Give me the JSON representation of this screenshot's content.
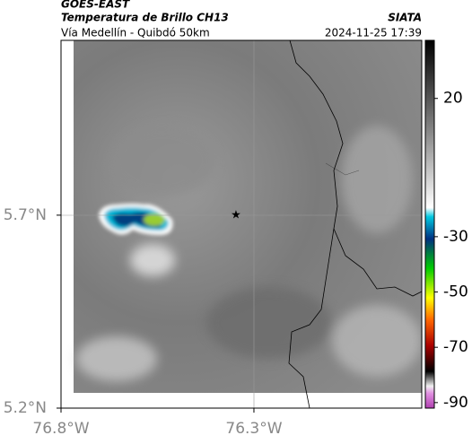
{
  "header": {
    "product": "GOES-EAST",
    "title": "Temperatura de Brillo CH13",
    "source": "SIATA",
    "subtitle": "Vía Medellín - Quibdó 50km",
    "timestamp": "2024-11-25 17:39"
  },
  "map": {
    "xlim": [
      -76.8,
      -75.865
    ],
    "ylim": [
      5.2,
      6.153
    ],
    "xticks": [
      {
        "value": -76.8,
        "label": "76.8°W"
      },
      {
        "value": -76.3,
        "label": "76.3°W"
      }
    ],
    "yticks": [
      {
        "value": 5.7,
        "label": "5.7°N"
      },
      {
        "value": 5.2,
        "label": "5.2°N"
      }
    ]
  },
  "colorbar": {
    "lim": [
      -92,
      41
    ],
    "ticks": [
      20,
      -30,
      -50,
      -70,
      -90
    ]
  }
}
